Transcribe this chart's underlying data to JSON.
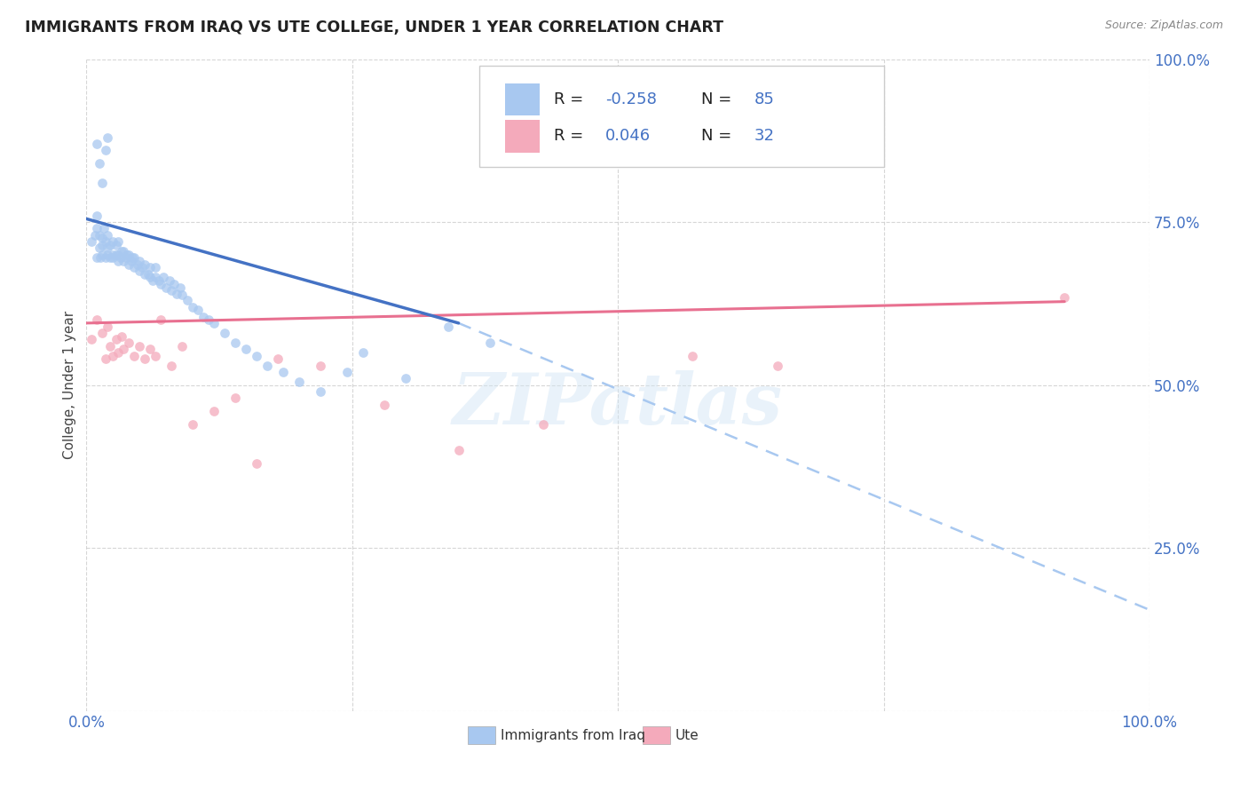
{
  "title": "IMMIGRANTS FROM IRAQ VS UTE COLLEGE, UNDER 1 YEAR CORRELATION CHART",
  "source": "Source: ZipAtlas.com",
  "ylabel": "College, Under 1 year",
  "legend_label_blue": "Immigrants from Iraq",
  "legend_label_pink": "Ute",
  "xlim": [
    0.0,
    1.0
  ],
  "ylim": [
    0.0,
    1.0
  ],
  "xticks": [
    0.0,
    0.25,
    0.5,
    0.75,
    1.0
  ],
  "xtick_labels": [
    "0.0%",
    "",
    "",
    "",
    "100.0%"
  ],
  "yticks": [
    0.0,
    0.25,
    0.5,
    0.75,
    1.0
  ],
  "ytick_labels": [
    "",
    "25.0%",
    "50.0%",
    "75.0%",
    "100.0%"
  ],
  "blue_color": "#A8C8F0",
  "pink_color": "#F4AABB",
  "blue_line_color": "#4472C4",
  "pink_line_color": "#E87090",
  "dashed_line_color": "#A8C8F0",
  "tick_label_color": "#4472C4",
  "R_blue": -0.258,
  "N_blue": 85,
  "R_pink": 0.046,
  "N_pink": 32,
  "watermark": "ZIPatlas",
  "blue_line_x0": 0.0,
  "blue_line_y0": 0.755,
  "blue_line_x1": 0.35,
  "blue_line_y1": 0.595,
  "pink_line_x0": 0.0,
  "pink_line_x1": 0.92,
  "pink_line_y0": 0.595,
  "pink_line_y1": 0.628,
  "dashed_line_x0": 0.35,
  "dashed_line_y0": 0.595,
  "dashed_line_x1": 1.0,
  "dashed_line_y1": 0.155,
  "blue_scatter_x": [
    0.005,
    0.008,
    0.01,
    0.01,
    0.01,
    0.012,
    0.012,
    0.013,
    0.015,
    0.015,
    0.015,
    0.016,
    0.018,
    0.018,
    0.02,
    0.02,
    0.02,
    0.022,
    0.022,
    0.025,
    0.025,
    0.025,
    0.028,
    0.028,
    0.03,
    0.03,
    0.03,
    0.032,
    0.033,
    0.035,
    0.035,
    0.037,
    0.038,
    0.04,
    0.04,
    0.042,
    0.043,
    0.045,
    0.045,
    0.048,
    0.05,
    0.05,
    0.052,
    0.055,
    0.055,
    0.058,
    0.06,
    0.06,
    0.062,
    0.065,
    0.065,
    0.068,
    0.07,
    0.072,
    0.075,
    0.078,
    0.08,
    0.082,
    0.085,
    0.088,
    0.09,
    0.095,
    0.1,
    0.105,
    0.11,
    0.115,
    0.12,
    0.13,
    0.14,
    0.15,
    0.16,
    0.17,
    0.185,
    0.2,
    0.22,
    0.245,
    0.26,
    0.3,
    0.34,
    0.38,
    0.01,
    0.012,
    0.015,
    0.018,
    0.02
  ],
  "blue_scatter_y": [
    0.72,
    0.73,
    0.695,
    0.74,
    0.76,
    0.71,
    0.73,
    0.695,
    0.715,
    0.725,
    0.7,
    0.74,
    0.695,
    0.72,
    0.7,
    0.71,
    0.73,
    0.695,
    0.715,
    0.7,
    0.695,
    0.72,
    0.7,
    0.715,
    0.69,
    0.7,
    0.72,
    0.695,
    0.705,
    0.69,
    0.705,
    0.695,
    0.7,
    0.685,
    0.7,
    0.69,
    0.695,
    0.68,
    0.695,
    0.685,
    0.675,
    0.69,
    0.68,
    0.67,
    0.685,
    0.67,
    0.665,
    0.68,
    0.66,
    0.665,
    0.68,
    0.66,
    0.655,
    0.665,
    0.65,
    0.66,
    0.645,
    0.655,
    0.64,
    0.65,
    0.638,
    0.63,
    0.62,
    0.615,
    0.605,
    0.6,
    0.595,
    0.58,
    0.565,
    0.555,
    0.545,
    0.53,
    0.52,
    0.505,
    0.49,
    0.52,
    0.55,
    0.51,
    0.59,
    0.565,
    0.87,
    0.84,
    0.81,
    0.86,
    0.88
  ],
  "pink_scatter_x": [
    0.005,
    0.01,
    0.015,
    0.018,
    0.02,
    0.022,
    0.025,
    0.028,
    0.03,
    0.033,
    0.035,
    0.04,
    0.045,
    0.05,
    0.055,
    0.06,
    0.065,
    0.07,
    0.08,
    0.09,
    0.1,
    0.12,
    0.14,
    0.16,
    0.18,
    0.22,
    0.28,
    0.35,
    0.43,
    0.57,
    0.65,
    0.92
  ],
  "pink_scatter_y": [
    0.57,
    0.6,
    0.58,
    0.54,
    0.59,
    0.56,
    0.545,
    0.57,
    0.55,
    0.575,
    0.555,
    0.565,
    0.545,
    0.56,
    0.54,
    0.555,
    0.545,
    0.6,
    0.53,
    0.56,
    0.44,
    0.46,
    0.48,
    0.38,
    0.54,
    0.53,
    0.47,
    0.4,
    0.44,
    0.545,
    0.53,
    0.635
  ]
}
